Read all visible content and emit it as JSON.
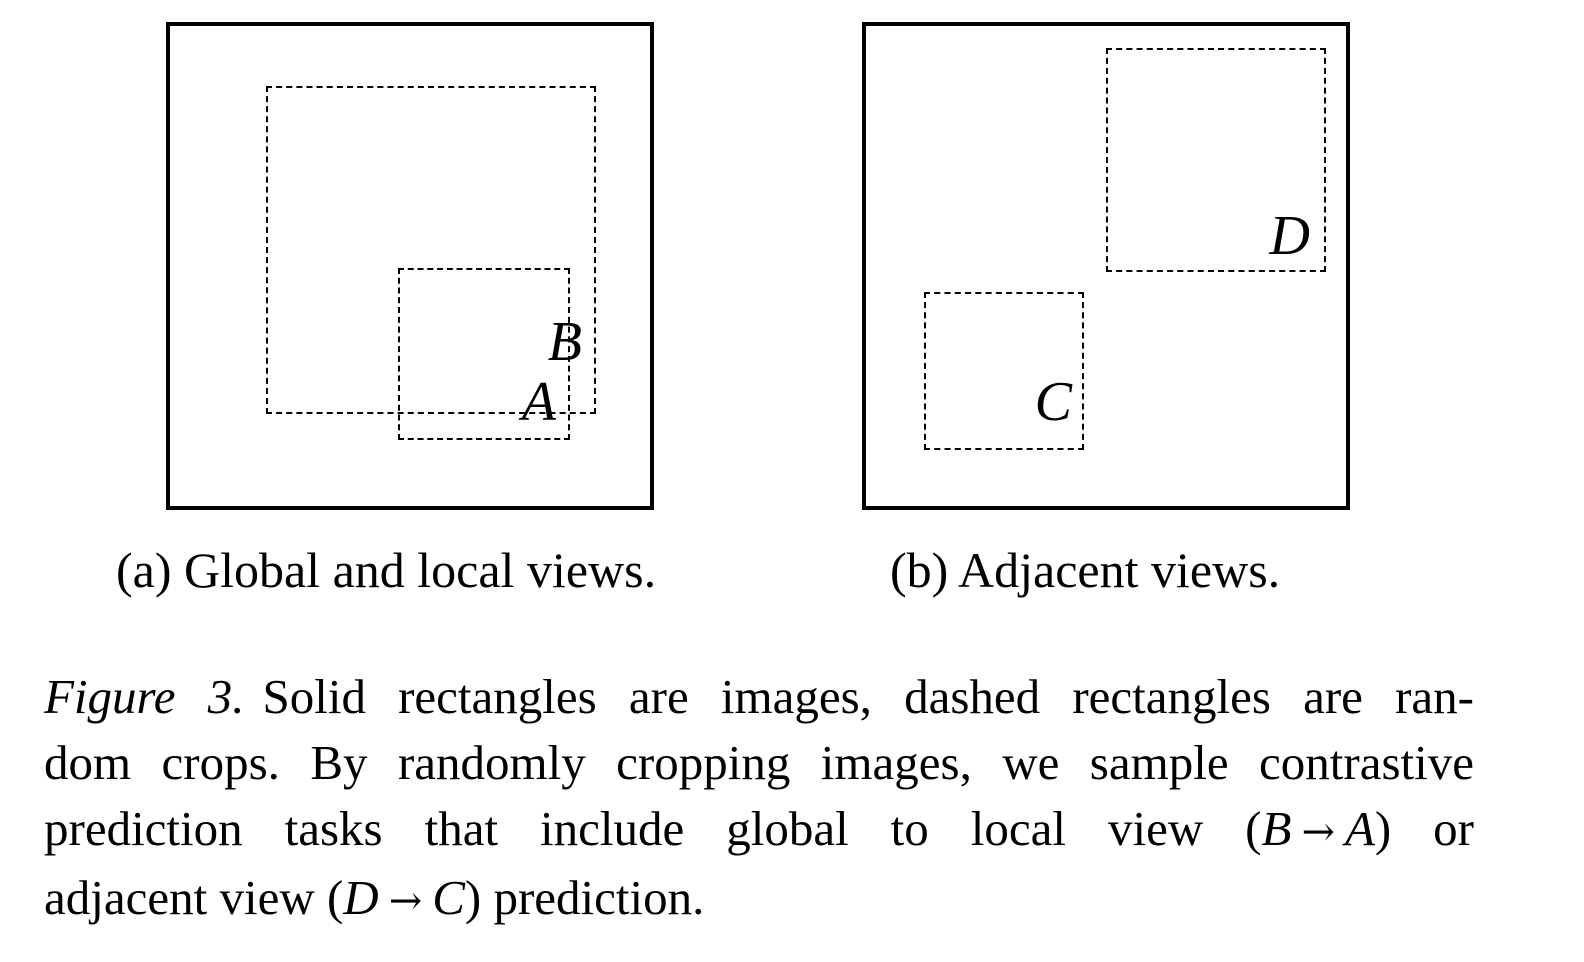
{
  "panels": {
    "a": {
      "labels": {
        "inner": "A",
        "outer": "B"
      },
      "subcaption": "(a) Global and local views."
    },
    "b": {
      "labels": {
        "upper": "D",
        "lower": "C"
      },
      "subcaption": "(b) Adjacent views."
    }
  },
  "caption": {
    "figure_label": "Figure 3.",
    "line1": "Solid rectangles are images, dashed rectangles are ran-",
    "line2": "dom crops. By randomly cropping images, we sample contrastive",
    "line3_text": "prediction tasks that include global to local view (",
    "line3_from": "B",
    "arrow": "→",
    "line3_to": "A",
    "line3_end": ") or",
    "line4_text": "adjacent view (",
    "line4_from": "D",
    "line4_to": "C",
    "line4_end": ") prediction."
  }
}
